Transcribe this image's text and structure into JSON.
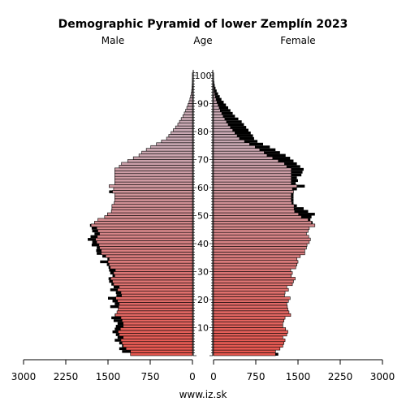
{
  "chart_data": {
    "type": "bar",
    "title": "Demographic Pyramid of lower Zemplín 2023",
    "left_label": "Male",
    "center_label": "Age",
    "right_label": "Female",
    "footer": "www.iz.sk",
    "x_ticks": [
      "3000",
      "2250",
      "1500",
      "750",
      "0",
      "0",
      "750",
      "1500",
      "2250",
      "3000"
    ],
    "x_tick_values": [
      3000,
      2250,
      1500,
      750,
      0,
      0,
      750,
      1500,
      2250,
      3000
    ],
    "age_ticks": [
      "10",
      "20",
      "30",
      "40",
      "50",
      "60",
      "70",
      "80",
      "90",
      "100"
    ],
    "age_tick_values": [
      10,
      20,
      30,
      40,
      50,
      60,
      70,
      80,
      90,
      100
    ],
    "xlim": [
      0,
      3000
    ],
    "age_range": [
      0,
      101
    ],
    "colors": {
      "young": "#e8574f",
      "old": "#c9a8b3",
      "excess": "#000000",
      "outline": "#000000"
    },
    "series": [
      {
        "name": "Male",
        "values": [
          1100,
          1250,
          1300,
          1250,
          1300,
          1380,
          1330,
          1360,
          1420,
          1380,
          1360,
          1330,
          1400,
          1440,
          1380,
          1340,
          1320,
          1460,
          1380,
          1420,
          1500,
          1350,
          1360,
          1460,
          1400,
          1440,
          1480,
          1490,
          1420,
          1460,
          1480,
          1490,
          1520,
          1640,
          1510,
          1600,
          1700,
          1710,
          1700,
          1790,
          1780,
          1860,
          1810,
          1740,
          1780,
          1790,
          1820,
          1740,
          1680,
          1560,
          1510,
          1440,
          1430,
          1430,
          1390,
          1380,
          1380,
          1380,
          1480,
          1400,
          1480,
          1380,
          1380,
          1380,
          1380,
          1380,
          1380,
          1300,
          1260,
          1150,
          1050,
          950,
          900,
          820,
          740,
          640,
          550,
          460,
          420,
          380,
          340,
          300,
          260,
          230,
          200,
          170,
          145,
          120,
          100,
          80,
          60,
          45,
          32,
          22,
          14,
          9,
          5,
          3,
          2,
          1,
          1
        ]
      },
      {
        "name": "Female",
        "values": [
          1150,
          1100,
          1180,
          1230,
          1250,
          1270,
          1230,
          1300,
          1320,
          1280,
          1230,
          1230,
          1250,
          1270,
          1370,
          1340,
          1320,
          1310,
          1300,
          1330,
          1360,
          1260,
          1270,
          1330,
          1300,
          1400,
          1420,
          1450,
          1380,
          1400,
          1370,
          1460,
          1480,
          1500,
          1480,
          1540,
          1620,
          1620,
          1650,
          1660,
          1700,
          1720,
          1690,
          1650,
          1680,
          1700,
          1800,
          1760,
          1720,
          1740,
          1800,
          1680,
          1600,
          1480,
          1420,
          1420,
          1420,
          1420,
          1420,
          1480,
          1620,
          1460,
          1500,
          1480,
          1560,
          1580,
          1600,
          1540,
          1480,
          1420,
          1360,
          1280,
          1180,
          1100,
          1000,
          880,
          780,
          720,
          700,
          660,
          620,
          580,
          540,
          500,
          440,
          380,
          340,
          300,
          260,
          220,
          180,
          140,
          110,
          80,
          55,
          35,
          20,
          12,
          6,
          3,
          2
        ]
      }
    ]
  }
}
